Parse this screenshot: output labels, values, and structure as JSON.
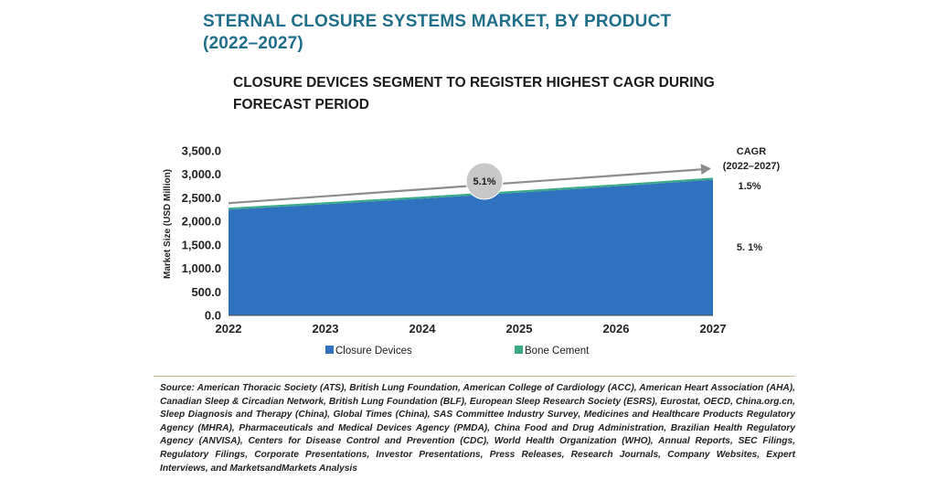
{
  "header": {
    "title_line1": "STERNAL CLOSURE SYSTEMS MARKET, BY PRODUCT",
    "title_line2": "(2022–2027)",
    "subtitle_line1": "CLOSURE DEVICES SEGMENT TO REGISTER HIGHEST CAGR DURING",
    "subtitle_line2": "FORECAST PERIOD"
  },
  "chart_data": {
    "type": "area",
    "stacked": true,
    "x": [
      "2022",
      "2023",
      "2024",
      "2025",
      "2026",
      "2027"
    ],
    "series": [
      {
        "name": "Closure Devices",
        "color": "#2f73c0",
        "values": [
          2250,
          2365,
          2486,
          2613,
          2746,
          2886
        ]
      },
      {
        "name": "Bone Cement",
        "color": "#3aaa86",
        "values": [
          40,
          41,
          41.5,
          42,
          42.5,
          43
        ]
      }
    ],
    "ylabel": "Market Size (USD Million)",
    "ylim": [
      0,
      3500
    ],
    "yticks": [
      "3,500.0",
      "3,000.0",
      "2,500.0",
      "2,000.0",
      "1,500.0",
      "1,000.0",
      "500.0",
      "0.0"
    ],
    "grid": false,
    "legend_position": "bottom",
    "trend_bubble": "5.1%",
    "cagr_header_line1": "CAGR",
    "cagr_header_line2": "(2022–2027)",
    "cagr_values": [
      "1.5%",
      "5. 1%"
    ]
  },
  "footer": {
    "source": "Source: American Thoracic Society (ATS), British Lung Foundation, American College of Cardiology (ACC), American Heart Association (AHA), Canadian Sleep & Circadian Network, British Lung Foundation (BLF), European Sleep Research Society (ESRS), Eurostat, OECD, China.org.cn, Sleep Diagnosis and Therapy (China), Global Times (China), SAS Committee Industry Survey, Medicines and Healthcare Products Regulatory Agency (MHRA), Pharmaceuticals and Medical Devices Agency (PMDA), China Food and Drug Administration, Brazilian Health Regulatory Agency (ANVISA), Centers for Disease Control and Prevention (CDC), World Health Organization (WHO), Annual Reports, SEC Filings, Regulatory Filings, Corporate Presentations, Investor Presentations, Press Releases, Research Journals, Company Websites, Expert Interviews, and MarketsandMarkets Analysis"
  }
}
